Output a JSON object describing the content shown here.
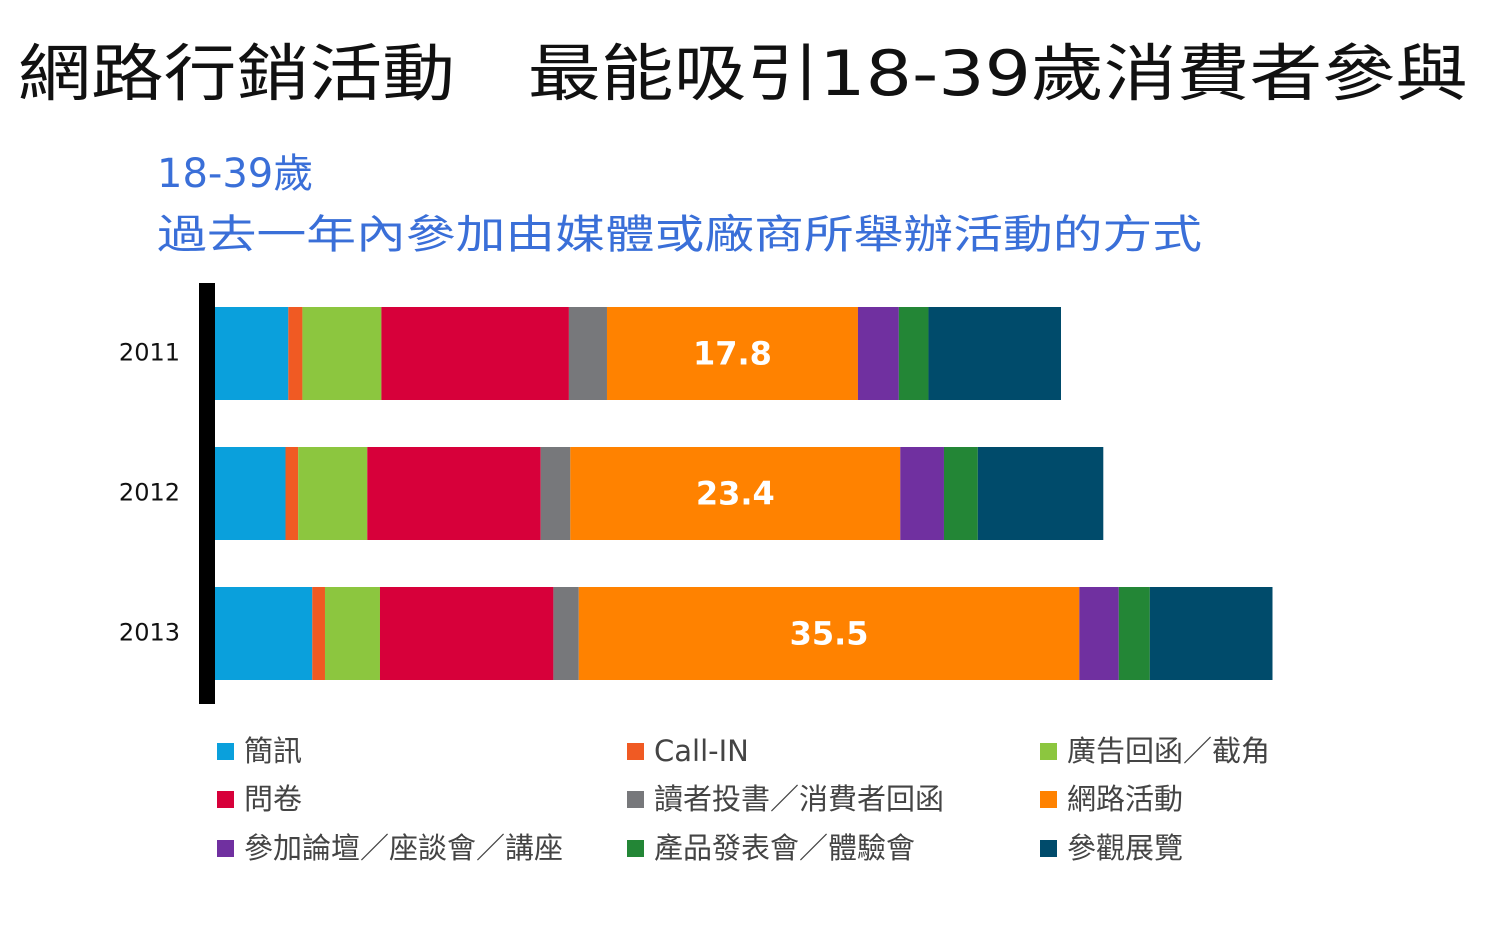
{
  "chart_data": {
    "type": "stacked_barh",
    "title": "網路行銷活動　最能吸引18-39歲消費者參與",
    "subtitle": [
      "18-39歲",
      "過去一年內參加由媒體或廠商所舉辦活動的方式"
    ],
    "categories": [
      "2011",
      "2012",
      "2013"
    ],
    "legend": "bottom",
    "series": [
      {
        "name": "簡訊",
        "color": "#0aa0dc",
        "values": [
          5.2,
          5.0,
          6.9
        ]
      },
      {
        "name": "Call-IN",
        "color": "#f05a23",
        "values": [
          1.0,
          0.9,
          0.9
        ]
      },
      {
        "name": "廣告回函／截角",
        "color": "#8cc63f",
        "values": [
          5.6,
          4.9,
          3.9
        ]
      },
      {
        "name": "問卷",
        "color": "#d7003a",
        "values": [
          13.3,
          12.3,
          12.3
        ]
      },
      {
        "name": "讀者投書／消費者回函",
        "color": "#77787b",
        "values": [
          2.7,
          2.1,
          1.8
        ]
      },
      {
        "name": "網路活動",
        "color": "#ff8200",
        "values": [
          17.8,
          23.4,
          35.5
        ],
        "data_labels": true
      },
      {
        "name": "參加論壇／座談會／講座",
        "color": "#7030a0",
        "values": [
          2.9,
          3.1,
          2.8
        ]
      },
      {
        "name": "產品發表會／體驗會",
        "color": "#238636",
        "values": [
          2.1,
          2.4,
          2.2
        ]
      },
      {
        "name": "參觀展覽",
        "color": "#004b6b",
        "values": [
          9.4,
          8.9,
          8.7
        ]
      }
    ]
  }
}
